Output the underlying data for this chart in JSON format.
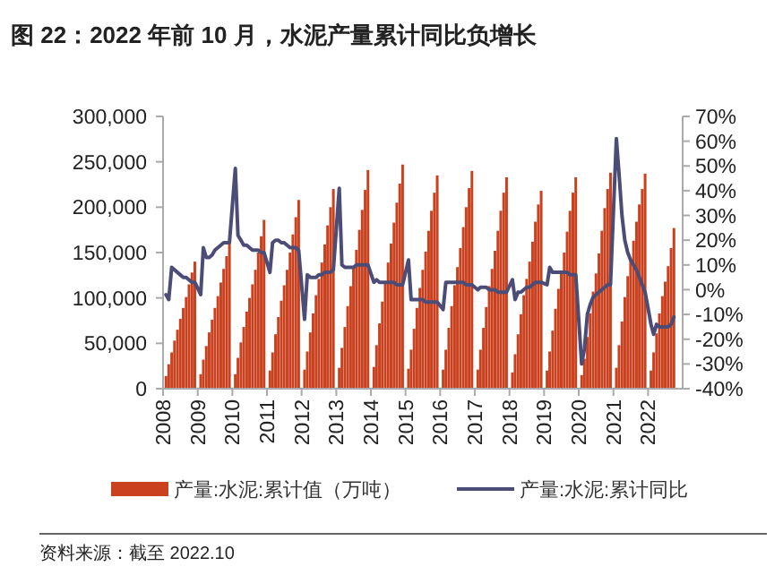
{
  "chart_data": {
    "type": "bar",
    "title": "图 22：2022 年前 10 月，水泥产量累计同比负增长",
    "x": [
      "2008-02",
      "2008-03",
      "2008-04",
      "2008-05",
      "2008-06",
      "2008-07",
      "2008-08",
      "2008-09",
      "2008-10",
      "2008-11",
      "2008-12",
      "2009-02",
      "2009-03",
      "2009-04",
      "2009-05",
      "2009-06",
      "2009-07",
      "2009-08",
      "2009-09",
      "2009-10",
      "2009-11",
      "2009-12",
      "2010-02",
      "2010-03",
      "2010-04",
      "2010-05",
      "2010-06",
      "2010-07",
      "2010-08",
      "2010-09",
      "2010-10",
      "2010-11",
      "2010-12",
      "2011-02",
      "2011-03",
      "2011-04",
      "2011-05",
      "2011-06",
      "2011-07",
      "2011-08",
      "2011-09",
      "2011-10",
      "2011-11",
      "2011-12",
      "2012-02",
      "2012-03",
      "2012-04",
      "2012-05",
      "2012-06",
      "2012-07",
      "2012-08",
      "2012-09",
      "2012-10",
      "2012-11",
      "2012-12",
      "2013-02",
      "2013-03",
      "2013-04",
      "2013-05",
      "2013-06",
      "2013-07",
      "2013-08",
      "2013-09",
      "2013-10",
      "2013-11",
      "2013-12",
      "2014-02",
      "2014-03",
      "2014-04",
      "2014-05",
      "2014-06",
      "2014-07",
      "2014-08",
      "2014-09",
      "2014-10",
      "2014-11",
      "2014-12",
      "2015-02",
      "2015-03",
      "2015-04",
      "2015-05",
      "2015-06",
      "2015-07",
      "2015-08",
      "2015-09",
      "2015-10",
      "2015-11",
      "2015-12",
      "2016-02",
      "2016-03",
      "2016-04",
      "2016-05",
      "2016-06",
      "2016-07",
      "2016-08",
      "2016-09",
      "2016-10",
      "2016-11",
      "2016-12",
      "2017-02",
      "2017-03",
      "2017-04",
      "2017-05",
      "2017-06",
      "2017-07",
      "2017-08",
      "2017-09",
      "2017-10",
      "2017-11",
      "2017-12",
      "2018-02",
      "2018-03",
      "2018-04",
      "2018-05",
      "2018-06",
      "2018-07",
      "2018-08",
      "2018-09",
      "2018-10",
      "2018-11",
      "2018-12",
      "2019-02",
      "2019-03",
      "2019-04",
      "2019-05",
      "2019-06",
      "2019-07",
      "2019-08",
      "2019-09",
      "2019-10",
      "2019-11",
      "2019-12",
      "2020-02",
      "2020-03",
      "2020-04",
      "2020-05",
      "2020-06",
      "2020-07",
      "2020-08",
      "2020-09",
      "2020-10",
      "2020-11",
      "2020-12",
      "2021-02",
      "2021-03",
      "2021-04",
      "2021-05",
      "2021-06",
      "2021-07",
      "2021-08",
      "2021-09",
      "2021-10",
      "2021-11",
      "2021-12",
      "2022-02",
      "2022-03",
      "2022-04",
      "2022-05",
      "2022-06",
      "2022-07",
      "2022-08",
      "2022-09",
      "2022-10"
    ],
    "series": [
      {
        "name": "产量:水泥:累计值（万吨）",
        "color": "#c9411f",
        "values": [
          14000,
          27000,
          40000,
          53000,
          65000,
          77000,
          89000,
          101000,
          115000,
          128000,
          140000,
          16000,
          32000,
          47000,
          62000,
          76000,
          89000,
          102000,
          117000,
          132000,
          146000,
          160000,
          16000,
          34000,
          51000,
          68000,
          85000,
          100000,
          115000,
          131000,
          150000,
          168000,
          186000,
          20000,
          40000,
          60000,
          79000,
          97000,
          114000,
          131000,
          150000,
          170000,
          189000,
          208000,
          21000,
          41000,
          62000,
          83000,
          103000,
          121000,
          139000,
          159000,
          180000,
          200000,
          220000,
          23000,
          45000,
          68000,
          91000,
          113000,
          133000,
          153000,
          175000,
          197000,
          219000,
          241000,
          24000,
          48000,
          72000,
          96000,
          118000,
          139000,
          160000,
          183000,
          205000,
          226000,
          247000,
          22000,
          43000,
          66000,
          89000,
          111000,
          131000,
          151000,
          174000,
          196000,
          216000,
          235000,
          21000,
          43000,
          67000,
          91000,
          114000,
          134000,
          155000,
          178000,
          200000,
          221000,
          240000,
          21000,
          43000,
          67000,
          90000,
          113000,
          132000,
          152000,
          174000,
          196000,
          216000,
          233000,
          18000,
          38000,
          60000,
          82000,
          103000,
          121000,
          140000,
          162000,
          184000,
          203000,
          218000,
          20000,
          41000,
          64000,
          88000,
          110000,
          130000,
          150000,
          173000,
          196000,
          216000,
          233000,
          15000,
          33000,
          57000,
          83000,
          107000,
          127000,
          149000,
          174000,
          199000,
          220000,
          238000,
          23000,
          48000,
          74000,
          101000,
          124000,
          143000,
          163000,
          184000,
          203000,
          220000,
          237000,
          20000,
          40000,
          61000,
          83000,
          102000,
          118000,
          135000,
          155000,
          177000
        ]
      },
      {
        "name": "产量:水泥:累计同比",
        "type": "line",
        "axis": "y2",
        "color": "#4b4d77",
        "values": [
          -2,
          -4,
          9,
          8,
          7,
          6,
          5,
          5,
          4,
          3,
          3,
          -2,
          17,
          13,
          13,
          14,
          16,
          17,
          18,
          19,
          19,
          19,
          49,
          22,
          20,
          18,
          18,
          17,
          16,
          16,
          16,
          15,
          15,
          7,
          19,
          20,
          20,
          19,
          19,
          18,
          17,
          17,
          17,
          16,
          -12,
          6,
          5,
          5,
          5,
          6,
          6,
          7,
          7,
          7,
          8,
          41,
          10,
          9,
          9,
          9,
          9,
          10,
          10,
          10,
          10,
          10,
          3,
          4,
          3,
          3,
          3,
          3,
          3,
          3,
          2,
          2,
          2,
          12,
          -4,
          -4,
          -4,
          -4,
          -4,
          -5,
          -5,
          -5,
          -5,
          -5,
          -8,
          3,
          3,
          3,
          3,
          3,
          3,
          3,
          2,
          2,
          2,
          0,
          1,
          1,
          1,
          0,
          0,
          0,
          -1,
          -1,
          -1,
          -1,
          4,
          -4,
          -1,
          -1,
          0,
          1,
          1,
          2,
          3,
          3,
          3,
          2,
          9,
          7,
          7,
          7,
          7,
          7,
          7,
          6,
          6,
          6,
          -30,
          -24,
          -10,
          -6,
          -3,
          -2,
          -1,
          0,
          1,
          2,
          2,
          61,
          47,
          30,
          20,
          15,
          12,
          10,
          8,
          5,
          2,
          -1,
          -14,
          -18,
          -14,
          -15,
          -15,
          -15,
          -15,
          -14,
          -11
        ]
      }
    ],
    "xlim": [
      "2008",
      "2023"
    ],
    "xticks": [
      "2008",
      "2009",
      "2010",
      "2011",
      "2012",
      "2013",
      "2014",
      "2015",
      "2016",
      "2017",
      "2018",
      "2019",
      "2020",
      "2021",
      "2022"
    ],
    "ylim": [
      0,
      300000
    ],
    "yticks": [
      0,
      {
        "value": 50000,
        "label": "50,000"
      },
      {
        "value": 100000,
        "label": "100,000"
      },
      {
        "value": 150000,
        "label": "150,000"
      },
      {
        "value": 200000,
        "label": "200,000"
      },
      {
        "value": 250000,
        "label": "250,000"
      },
      {
        "value": 300000,
        "label": "300,000"
      }
    ],
    "y2lim": [
      -40,
      70
    ],
    "y2ticks": [
      {
        "value": -40,
        "label": "-40%"
      },
      {
        "value": -30,
        "label": "-30%"
      },
      {
        "value": -20,
        "label": "-20%"
      },
      {
        "value": -10,
        "label": "-10%"
      },
      {
        "value": 0,
        "label": "0%"
      },
      {
        "value": 10,
        "label": "10%"
      },
      {
        "value": 20,
        "label": "20%"
      },
      {
        "value": 30,
        "label": "30%"
      },
      {
        "value": 40,
        "label": "40%"
      },
      {
        "value": 50,
        "label": "50%"
      },
      {
        "value": 60,
        "label": "60%"
      },
      {
        "value": 70,
        "label": "70%"
      }
    ],
    "legend": "bottom",
    "grid": false,
    "annotations": [
      "资料来源：截至 2022.10"
    ]
  }
}
